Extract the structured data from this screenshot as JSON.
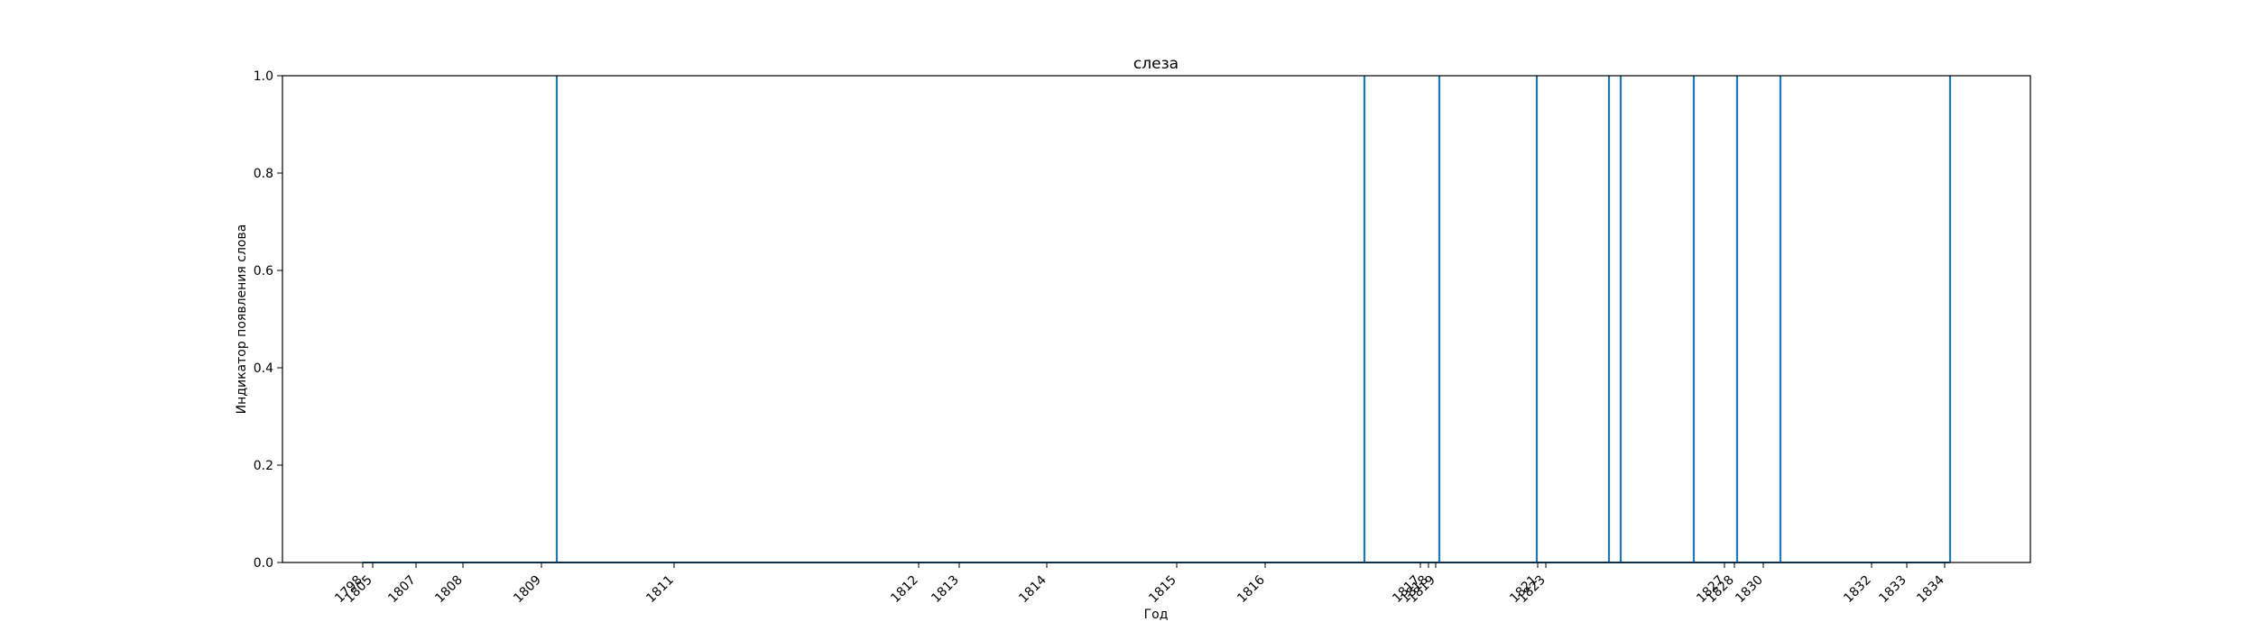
{
  "chart_data": {
    "type": "line",
    "title": "слеза",
    "xlabel": "Год",
    "ylabel": "Индикатор появления слова",
    "ylim": [
      0,
      1
    ],
    "yticks": [
      "0.0",
      "0.2",
      "0.4",
      "0.6",
      "0.8",
      "1.0"
    ],
    "xticks": [
      "1798",
      "1805",
      "1807",
      "1808",
      "1809",
      "1811",
      "1812",
      "1813",
      "1814",
      "1815",
      "1816",
      "1817",
      "1818",
      "1819",
      "1821",
      "1823",
      "1827",
      "1828",
      "1830",
      "1832",
      "1833",
      "1834"
    ],
    "grid": false,
    "series": [
      {
        "color": "#1f77b4",
        "x": [
          "1809",
          "1817",
          "1819",
          "1822",
          "1825",
          "1826",
          "1827",
          "1829",
          "1831",
          "1834"
        ],
        "values": [
          1,
          1,
          1,
          1,
          1,
          1,
          1,
          1,
          1,
          1
        ]
      }
    ]
  }
}
